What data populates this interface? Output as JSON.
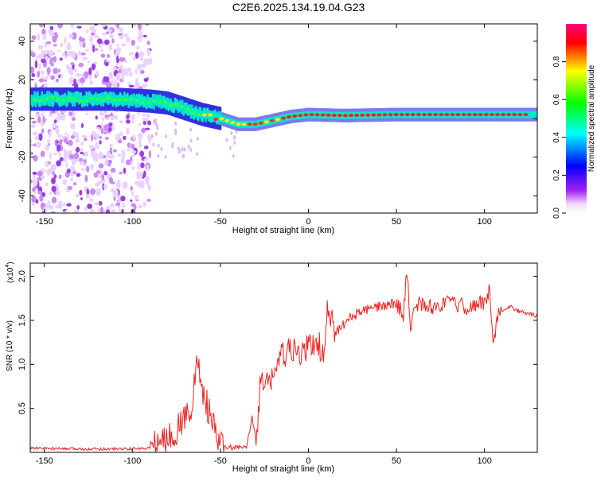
{
  "figure": {
    "title": "C2E6.2025.134.19.04.G23"
  },
  "chart_data": [
    {
      "type": "heatmap",
      "xlabel": "Height of straight line (km)",
      "ylabel": "Frequency (Hz)",
      "xlim": [
        -158,
        130
      ],
      "ylim": [
        -49,
        49
      ],
      "xticks": [
        -150,
        -100,
        -50,
        0,
        50,
        100
      ],
      "yticks": [
        -40,
        -20,
        0,
        20,
        40
      ],
      "colorbar": {
        "label": "Normalized spectral amplitude",
        "range": [
          0,
          1
        ],
        "ticks": [
          "0.0",
          "0.2",
          "0.4",
          "0.6",
          "0.8"
        ],
        "colors": [
          "#ffffff",
          "#a020f0",
          "#0000ff",
          "#00ffff",
          "#00ff00",
          "#ffff00",
          "#ff0000",
          "#ff0080"
        ]
      },
      "dominant_frequency_track": [
        {
          "x": -150,
          "y": 10
        },
        {
          "x": -130,
          "y": 10
        },
        {
          "x": -110,
          "y": 10
        },
        {
          "x": -90,
          "y": 9
        },
        {
          "x": -80,
          "y": 8
        },
        {
          "x": -70,
          "y": 5
        },
        {
          "x": -60,
          "y": 2
        },
        {
          "x": -50,
          "y": 0
        },
        {
          "x": -40,
          "y": -3
        },
        {
          "x": -30,
          "y": -3
        },
        {
          "x": -20,
          "y": -1
        },
        {
          "x": -10,
          "y": 1
        },
        {
          "x": 0,
          "y": 2
        },
        {
          "x": 20,
          "y": 1.5
        },
        {
          "x": 50,
          "y": 2
        },
        {
          "x": 80,
          "y": 2
        },
        {
          "x": 100,
          "y": 2
        },
        {
          "x": 130,
          "y": 2
        }
      ]
    },
    {
      "type": "line",
      "xlabel": "Height of straight line (km)",
      "ylabel": "SNR (10 * v/v)",
      "y_multiplier_label": "(x10",
      "y_multiplier_exponent": "4",
      "y_multiplier_suffix": ")",
      "xlim": [
        -158,
        130
      ],
      "ylim": [
        0,
        2.15
      ],
      "xticks": [
        -150,
        -100,
        -50,
        0,
        50,
        100
      ],
      "yticks": [
        0.5,
        1.0,
        1.5,
        2.0
      ],
      "yticklabels": [
        "0.5",
        "1.0",
        "1.5",
        "2.0"
      ],
      "series": [
        {
          "color": "#ee2222",
          "points": [
            [
              -158,
              0.05
            ],
            [
              -140,
              0.04
            ],
            [
              -120,
              0.04
            ],
            [
              -100,
              0.04
            ],
            [
              -90,
              0.05
            ],
            [
              -80,
              0.15
            ],
            [
              -75,
              0.25
            ],
            [
              -70,
              0.4
            ],
            [
              -66,
              0.55
            ],
            [
              -63,
              1.05
            ],
            [
              -60,
              0.7
            ],
            [
              -55,
              0.35
            ],
            [
              -52,
              0.15
            ],
            [
              -48,
              0.06
            ],
            [
              -40,
              0.05
            ],
            [
              -35,
              0.06
            ],
            [
              -32,
              0.4
            ],
            [
              -30,
              0.2
            ],
            [
              -28,
              0.5
            ],
            [
              -27,
              0.95
            ],
            [
              -25,
              0.7
            ],
            [
              -20,
              0.9
            ],
            [
              -15,
              1.1
            ],
            [
              -10,
              1.15
            ],
            [
              -5,
              1.1
            ],
            [
              0,
              1.2
            ],
            [
              5,
              1.25
            ],
            [
              9,
              1.1
            ],
            [
              11,
              1.65
            ],
            [
              15,
              1.35
            ],
            [
              20,
              1.45
            ],
            [
              25,
              1.55
            ],
            [
              30,
              1.6
            ],
            [
              40,
              1.65
            ],
            [
              50,
              1.7
            ],
            [
              54,
              1.55
            ],
            [
              56,
              2.12
            ],
            [
              58,
              1.35
            ],
            [
              60,
              1.7
            ],
            [
              70,
              1.65
            ],
            [
              80,
              1.7
            ],
            [
              90,
              1.65
            ],
            [
              100,
              1.7
            ],
            [
              103,
              1.85
            ],
            [
              105,
              1.25
            ],
            [
              108,
              1.6
            ],
            [
              115,
              1.65
            ],
            [
              120,
              1.6
            ],
            [
              130,
              1.55
            ]
          ]
        }
      ]
    }
  ]
}
